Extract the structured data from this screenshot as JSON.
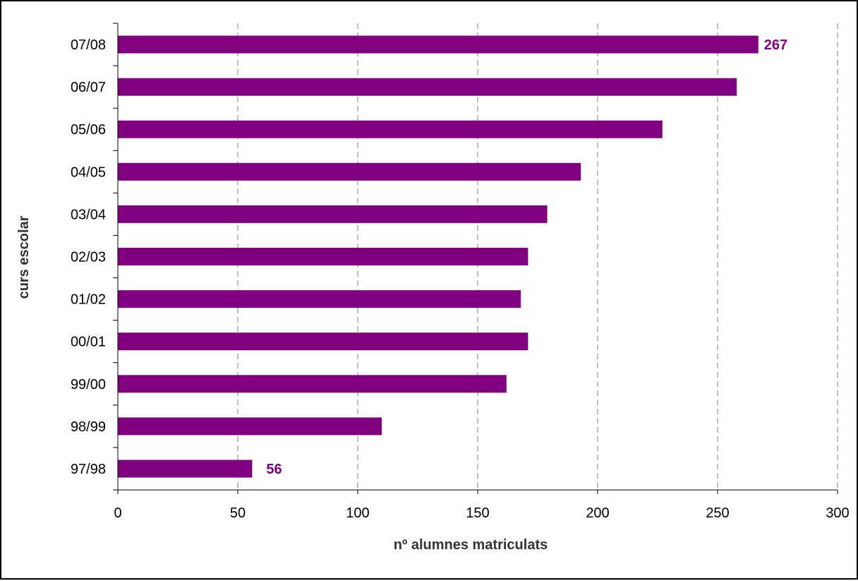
{
  "chart_data": {
    "type": "bar",
    "orientation": "horizontal",
    "categories": [
      "97/98",
      "98/99",
      "99/00",
      "00/01",
      "01/02",
      "02/03",
      "03/04",
      "04/05",
      "05/06",
      "06/07",
      "07/08"
    ],
    "values": [
      56,
      110,
      162,
      171,
      168,
      171,
      179,
      193,
      227,
      258,
      267
    ],
    "xlabel": "nº alumnes matriculats",
    "ylabel": "curs escolar",
    "xlim": [
      0,
      300
    ],
    "x_ticks": [
      0,
      50,
      100,
      150,
      200,
      250,
      300
    ],
    "grid": "vertical dashed",
    "bar_color": "#800080",
    "data_labels": [
      {
        "category": "97/98",
        "text": "56"
      },
      {
        "category": "07/08",
        "text": "267"
      }
    ]
  }
}
